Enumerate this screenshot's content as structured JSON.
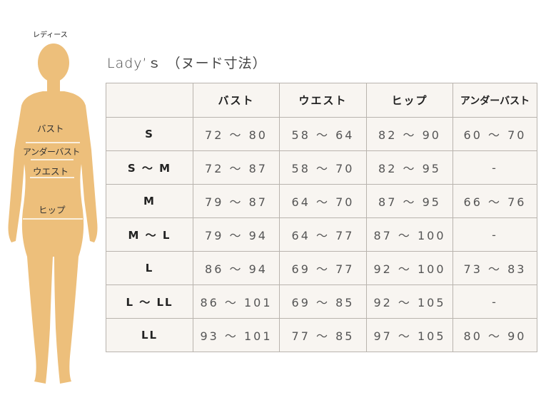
{
  "figure": {
    "title": "レディース",
    "labels": {
      "bust": "バスト",
      "underbust": "アンダーバスト",
      "waist": "ウエスト",
      "hip": "ヒップ"
    },
    "body_color": "#edbf7b"
  },
  "title": "Lady’ｓ （ヌード寸法）",
  "table": {
    "headers": [
      "",
      "バスト",
      "ウエスト",
      "ヒップ",
      "アンダーバスト"
    ],
    "rows": [
      {
        "size": "S",
        "bust": "72 ～ 80",
        "waist": "58 ～ 64",
        "hip": "82 ～ 90",
        "underbust": "60 ～ 70"
      },
      {
        "size": "S ～ M",
        "bust": "72 ～ 87",
        "waist": "58 ～ 70",
        "hip": "82 ～ 95",
        "underbust": "-"
      },
      {
        "size": "M",
        "bust": "79 ～ 87",
        "waist": "64 ～ 70",
        "hip": "87 ～ 95",
        "underbust": "66 ～ 76"
      },
      {
        "size": "M ～ L",
        "bust": "79 ～ 94",
        "waist": "64 ～ 77",
        "hip": "87 ～ 100",
        "underbust": "-"
      },
      {
        "size": "L",
        "bust": "86 ～ 94",
        "waist": "69 ～ 77",
        "hip": "92 ～ 100",
        "underbust": "73 ～ 83"
      },
      {
        "size": "L ～ LL",
        "bust": "86 ～ 101",
        "waist": "69 ～ 85",
        "hip": "92 ～ 105",
        "underbust": "-"
      },
      {
        "size": "LL",
        "bust": "93 ～ 101",
        "waist": "77 ～ 85",
        "hip": "97 ～ 105",
        "underbust": "80 ～ 90"
      }
    ]
  }
}
